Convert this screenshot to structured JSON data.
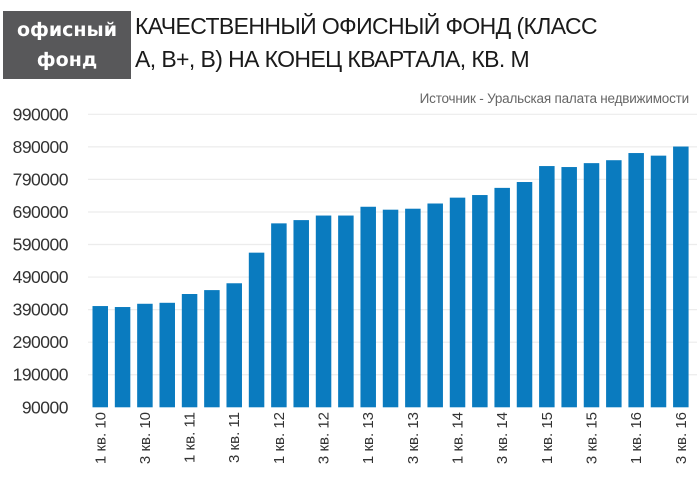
{
  "header": {
    "badge_line1": "офисный",
    "badge_line2": "фонд",
    "title_line1": "КАЧЕСТВЕННЫЙ ОФИСНЫЙ ФОНД (КЛАСС",
    "title_line2": "А, В+, В) НА КОНЕЦ КВАРТАЛА, КВ. М",
    "source": "Источник - Уральская палата недвижимости"
  },
  "colors": {
    "bar": "#0a7bbf",
    "badge": "#58585a",
    "grid": "#ececec"
  },
  "chart_data": {
    "type": "bar",
    "title": "КАЧЕСТВЕННЫЙ ОФИСНЫЙ ФОНД (КЛАСС А, В+, В) НА КОНЕЦ КВАРТАЛА, КВ. М",
    "xlabel": "",
    "ylabel": "",
    "ylim": [
      90000,
      990000
    ],
    "yticks": [
      "990000",
      "890000",
      "790000",
      "690000",
      "590000",
      "490000",
      "390000",
      "290000",
      "190000",
      "90000"
    ],
    "tick_labels": [
      "1 кв. 10",
      "3 кв. 10",
      "1 кв. 11",
      "3 кв. 11",
      "1 кв. 12",
      "3 кв. 12",
      "1 кв. 13",
      "3 кв. 13",
      "1 кв. 14",
      "3 кв. 14",
      "1 кв. 15",
      "3 кв. 15",
      "1 кв. 16",
      "3 кв. 16"
    ],
    "values": [
      401000,
      398000,
      408000,
      411000,
      438000,
      450000,
      471000,
      565000,
      655000,
      665000,
      679000,
      679000,
      706000,
      697000,
      700000,
      716000,
      734000,
      742000,
      764000,
      782000,
      831000,
      828000,
      840000,
      849000,
      871000,
      863000,
      891000
    ],
    "grid": true,
    "legend": "none"
  }
}
